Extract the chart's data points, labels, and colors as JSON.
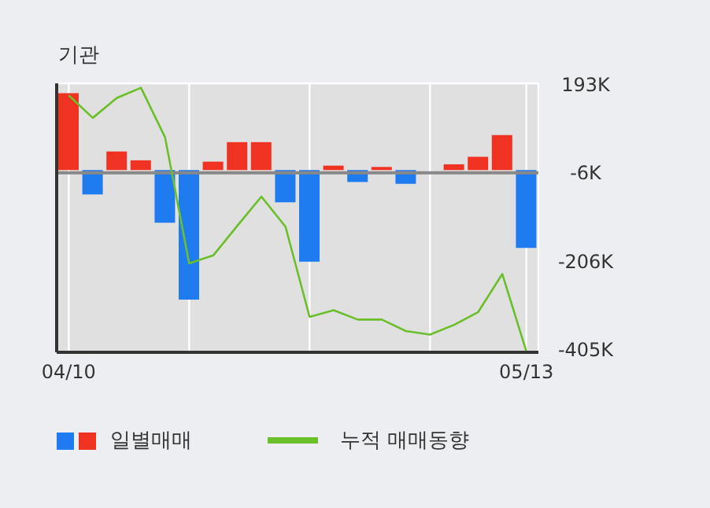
{
  "chart_data": {
    "type": "bar",
    "title": "기관",
    "categories": [
      "04/10",
      null,
      null,
      null,
      null,
      null,
      null,
      null,
      null,
      null,
      null,
      null,
      null,
      null,
      null,
      null,
      null,
      null,
      null,
      "05/13"
    ],
    "series": [
      {
        "name": "일별매매",
        "colors": [
          "#f03222",
          "#1f7bf0",
          "#f03222",
          "#f03222",
          "#1f7bf0",
          "#1f7bf0",
          "#f03222",
          "#f03222",
          "#f03222",
          "#1f7bf0",
          "#1f7bf0",
          "#f03222",
          "#1f7bf0",
          "#f03222",
          "#1f7bf0",
          "#f03222",
          "#f03222",
          "#f03222",
          "#f03222",
          "#1f7bf0"
        ],
        "values": [
          174,
          -55,
          42,
          22,
          -119,
          -293,
          19,
          63,
          63,
          -73,
          -207,
          10,
          -27,
          7,
          -31,
          0,
          13,
          30,
          79,
          -176
        ]
      },
      {
        "name": "누적 매매동향",
        "type": "line",
        "color": "#6abf2a",
        "values": [
          169,
          118,
          163,
          186,
          74,
          -211,
          -193,
          -126,
          -60,
          -128,
          -332,
          -317,
          -338,
          -338,
          -364,
          -372,
          -350,
          -321,
          -235,
          -410
        ]
      }
    ],
    "ylim": [
      -412,
      196
    ],
    "yticks": [
      {
        "value": 193,
        "label": "193K"
      },
      {
        "value": -6,
        "label": "-6K"
      },
      {
        "value": -206,
        "label": "-206K"
      },
      {
        "value": -405,
        "label": "-405K"
      }
    ],
    "ref_lines": [
      {
        "axis": "y",
        "value": -6,
        "color": "#888888"
      }
    ],
    "grid": true,
    "legend": "bottom"
  }
}
